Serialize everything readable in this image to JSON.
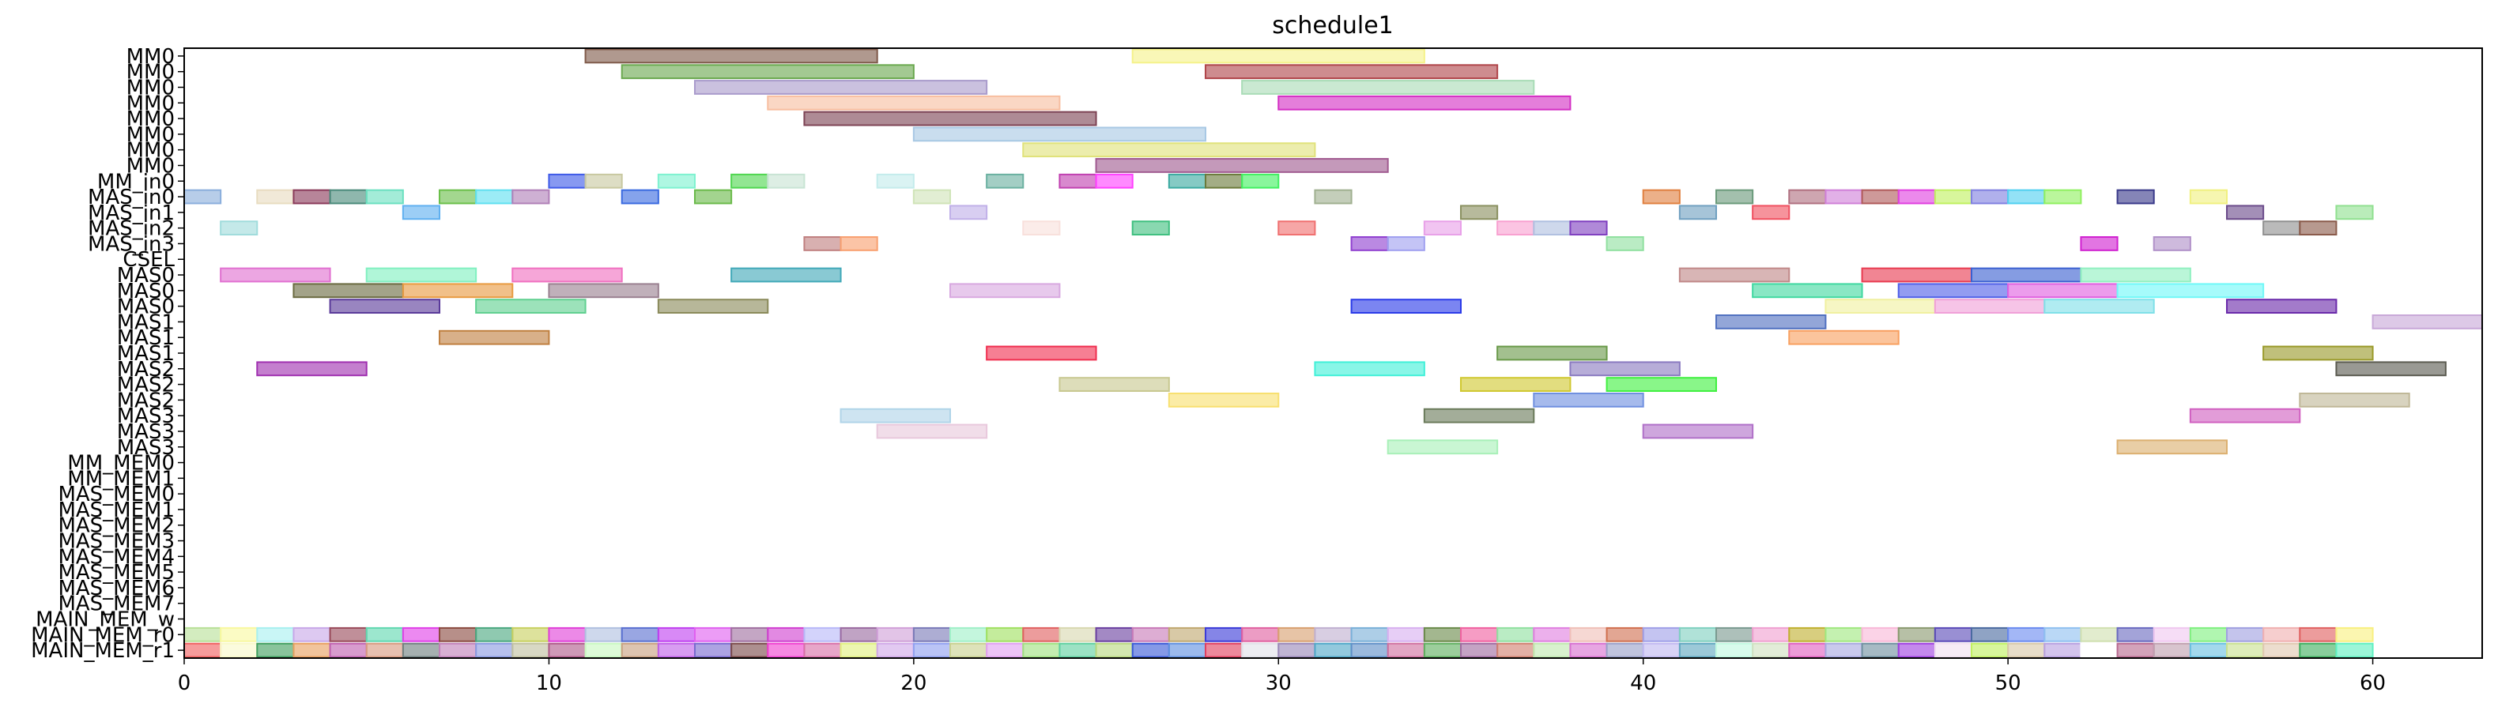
{
  "chart_data": {
    "type": "gantt",
    "title": "schedule1",
    "xlabel": "",
    "ylabel": "",
    "xlim": [
      0,
      63
    ],
    "xticks": [
      0,
      10,
      20,
      30,
      40,
      50,
      60
    ],
    "grid": false,
    "rows": [
      "MM0",
      "MM0",
      "MM0",
      "MM0",
      "MM0",
      "MM0",
      "MM0",
      "MM0",
      "MM_in0",
      "MAS_in0",
      "MAS_in1",
      "MAS_in2",
      "MAS_in3",
      "CSEL",
      "MAS0",
      "MAS0",
      "MAS0",
      "MAS1",
      "MAS1",
      "MAS1",
      "MAS2",
      "MAS2",
      "MAS2",
      "MAS3",
      "MAS3",
      "MAS3",
      "MM_MEM0",
      "MM_MEM1",
      "MAS_MEM0",
      "MAS_MEM1",
      "MAS_MEM2",
      "MAS_MEM3",
      "MAS_MEM4",
      "MAS_MEM5",
      "MAS_MEM6",
      "MAS_MEM7",
      "MAIN_MEM_w",
      "MAIN_MEM_r0",
      "MAIN_MEM_r1"
    ],
    "bars": [
      {
        "row": 0,
        "start": 11,
        "end": 19,
        "color": "#7f5a4a"
      },
      {
        "row": 0,
        "start": 26,
        "end": 34,
        "color": "#f5f28a"
      },
      {
        "row": 1,
        "start": 12,
        "end": 20,
        "color": "#6aa84f"
      },
      {
        "row": 1,
        "start": 28,
        "end": 36,
        "color": "#b0454a"
      },
      {
        "row": 2,
        "start": 14,
        "end": 22,
        "color": "#a99bcc"
      },
      {
        "row": 2,
        "start": 29,
        "end": 37,
        "color": "#a9dcb7"
      },
      {
        "row": 3,
        "start": 16,
        "end": 24,
        "color": "#f7bea0"
      },
      {
        "row": 3,
        "start": 30,
        "end": 38,
        "color": "#d42fc4"
      },
      {
        "row": 4,
        "start": 17,
        "end": 25,
        "color": "#7d4354"
      },
      {
        "row": 5,
        "start": 20,
        "end": 28,
        "color": "#a8c8e4"
      },
      {
        "row": 6,
        "start": 23,
        "end": 31,
        "color": "#e0e27a"
      },
      {
        "row": 7,
        "start": 25,
        "end": 33,
        "color": "#a05a90"
      },
      {
        "row": 8,
        "start": 10,
        "end": 11,
        "color": "#3e5ae8"
      },
      {
        "row": 8,
        "start": 11,
        "end": 12,
        "color": "#c8c8a0"
      },
      {
        "row": 8,
        "start": 13,
        "end": 14,
        "color": "#7ef2d0"
      },
      {
        "row": 8,
        "start": 15,
        "end": 16,
        "color": "#4fd64f"
      },
      {
        "row": 8,
        "start": 16,
        "end": 17,
        "color": "#c8e4d4"
      },
      {
        "row": 8,
        "start": 19,
        "end": 20,
        "color": "#c4ecec"
      },
      {
        "row": 8,
        "start": 22,
        "end": 23,
        "color": "#6ab0a0"
      },
      {
        "row": 8,
        "start": 24,
        "end": 25,
        "color": "#c040b0"
      },
      {
        "row": 8,
        "start": 25,
        "end": 26,
        "color": "#ff40ff"
      },
      {
        "row": 8,
        "start": 27,
        "end": 28,
        "color": "#3aaaa0"
      },
      {
        "row": 8,
        "start": 28,
        "end": 29,
        "color": "#6a7a3a"
      },
      {
        "row": 8,
        "start": 29,
        "end": 30,
        "color": "#40f060"
      },
      {
        "row": 9,
        "start": 0,
        "end": 1,
        "color": "#8aaedc"
      },
      {
        "row": 9,
        "start": 2,
        "end": 3,
        "color": "#e8dcc0"
      },
      {
        "row": 9,
        "start": 3,
        "end": 4,
        "color": "#8a3a5a"
      },
      {
        "row": 9,
        "start": 4,
        "end": 5,
        "color": "#4a8a7a"
      },
      {
        "row": 9,
        "start": 5,
        "end": 6,
        "color": "#6ae0c0"
      },
      {
        "row": 9,
        "start": 7,
        "end": 8,
        "color": "#6abf4a"
      },
      {
        "row": 9,
        "start": 8,
        "end": 9,
        "color": "#60e0f0"
      },
      {
        "row": 9,
        "start": 9,
        "end": 10,
        "color": "#b080b8"
      },
      {
        "row": 9,
        "start": 12,
        "end": 13,
        "color": "#3a6ae0"
      },
      {
        "row": 9,
        "start": 14,
        "end": 15,
        "color": "#6aba4a"
      },
      {
        "row": 9,
        "start": 20,
        "end": 21,
        "color": "#d0e4b8"
      },
      {
        "row": 9,
        "start": 31,
        "end": 32,
        "color": "#a0b090"
      },
      {
        "row": 9,
        "start": 40,
        "end": 41,
        "color": "#e08040"
      },
      {
        "row": 9,
        "start": 42,
        "end": 43,
        "color": "#6a9a7a"
      },
      {
        "row": 9,
        "start": 44,
        "end": 45,
        "color": "#b07080"
      },
      {
        "row": 9,
        "start": 45,
        "end": 46,
        "color": "#d080d8"
      },
      {
        "row": 9,
        "start": 46,
        "end": 47,
        "color": "#b05a5a"
      },
      {
        "row": 9,
        "start": 47,
        "end": 48,
        "color": "#e040e0"
      },
      {
        "row": 9,
        "start": 48,
        "end": 49,
        "color": "#c0f060"
      },
      {
        "row": 9,
        "start": 49,
        "end": 50,
        "color": "#8080e0"
      },
      {
        "row": 9,
        "start": 50,
        "end": 51,
        "color": "#50d0f0"
      },
      {
        "row": 9,
        "start": 51,
        "end": 52,
        "color": "#90f060"
      },
      {
        "row": 9,
        "start": 53,
        "end": 54,
        "color": "#3a3a8a"
      },
      {
        "row": 9,
        "start": 55,
        "end": 56,
        "color": "#f0f080"
      },
      {
        "row": 10,
        "start": 6,
        "end": 7,
        "color": "#60b0f0"
      },
      {
        "row": 10,
        "start": 21,
        "end": 22,
        "color": "#c0b0e8"
      },
      {
        "row": 10,
        "start": 35,
        "end": 36,
        "color": "#8a9060"
      },
      {
        "row": 10,
        "start": 41,
        "end": 42,
        "color": "#70a0c0"
      },
      {
        "row": 10,
        "start": 43,
        "end": 44,
        "color": "#f05060"
      },
      {
        "row": 10,
        "start": 56,
        "end": 57,
        "color": "#6a4a8a"
      },
      {
        "row": 10,
        "start": 59,
        "end": 60,
        "color": "#90e090"
      },
      {
        "row": 11,
        "start": 1,
        "end": 2,
        "color": "#a0dcdc"
      },
      {
        "row": 11,
        "start": 23,
        "end": 24,
        "color": "#f8e0dc"
      },
      {
        "row": 11,
        "start": 26,
        "end": 27,
        "color": "#40c080"
      },
      {
        "row": 11,
        "start": 30,
        "end": 31,
        "color": "#f07070"
      },
      {
        "row": 11,
        "start": 34,
        "end": 35,
        "color": "#e8a0e8"
      },
      {
        "row": 11,
        "start": 36,
        "end": 37,
        "color": "#f8a0d0"
      },
      {
        "row": 11,
        "start": 37,
        "end": 38,
        "color": "#b0c0e0"
      },
      {
        "row": 11,
        "start": 38,
        "end": 39,
        "color": "#8040c0"
      },
      {
        "row": 11,
        "start": 57,
        "end": 58,
        "color": "#909090"
      },
      {
        "row": 11,
        "start": 58,
        "end": 59,
        "color": "#8a5a4a"
      },
      {
        "row": 12,
        "start": 17,
        "end": 18,
        "color": "#c08080"
      },
      {
        "row": 12,
        "start": 18,
        "end": 19,
        "color": "#f8a070"
      },
      {
        "row": 12,
        "start": 32,
        "end": 33,
        "color": "#9040d0"
      },
      {
        "row": 12,
        "start": 33,
        "end": 34,
        "color": "#a0a0f0"
      },
      {
        "row": 12,
        "start": 39,
        "end": 40,
        "color": "#90e0a0"
      },
      {
        "row": 12,
        "start": 52,
        "end": 53,
        "color": "#d020d0"
      },
      {
        "row": 12,
        "start": 54,
        "end": 55,
        "color": "#b090c8"
      },
      {
        "row": 14,
        "start": 1,
        "end": 4,
        "color": "#e070d0"
      },
      {
        "row": 14,
        "start": 5,
        "end": 8,
        "color": "#80f0c0"
      },
      {
        "row": 14,
        "start": 9,
        "end": 12,
        "color": "#f070c0"
      },
      {
        "row": 14,
        "start": 15,
        "end": 18,
        "color": "#40a8b8"
      },
      {
        "row": 14,
        "start": 41,
        "end": 44,
        "color": "#c08888"
      },
      {
        "row": 14,
        "start": 46,
        "end": 49,
        "color": "#e83a50"
      },
      {
        "row": 14,
        "start": 49,
        "end": 52,
        "color": "#3a60d0"
      },
      {
        "row": 14,
        "start": 52,
        "end": 55,
        "color": "#90f0c0"
      },
      {
        "row": 15,
        "start": 3,
        "end": 6,
        "color": "#6a6a40"
      },
      {
        "row": 15,
        "start": 6,
        "end": 9,
        "color": "#e89a40"
      },
      {
        "row": 15,
        "start": 10,
        "end": 13,
        "color": "#9a8090"
      },
      {
        "row": 15,
        "start": 21,
        "end": 24,
        "color": "#d8a8e0"
      },
      {
        "row": 15,
        "start": 43,
        "end": 46,
        "color": "#40d8a0"
      },
      {
        "row": 15,
        "start": 47,
        "end": 50,
        "color": "#5060e8"
      },
      {
        "row": 15,
        "start": 50,
        "end": 53,
        "color": "#e060e0"
      },
      {
        "row": 15,
        "start": 53,
        "end": 57,
        "color": "#70f8f8"
      },
      {
        "row": 16,
        "start": 4,
        "end": 7,
        "color": "#5a3a9a"
      },
      {
        "row": 16,
        "start": 8,
        "end": 11,
        "color": "#60d090"
      },
      {
        "row": 16,
        "start": 13,
        "end": 16,
        "color": "#8a8a5a"
      },
      {
        "row": 16,
        "start": 32,
        "end": 35,
        "color": "#2a3ae8"
      },
      {
        "row": 16,
        "start": 45,
        "end": 48,
        "color": "#f0f0a0"
      },
      {
        "row": 16,
        "start": 48,
        "end": 51,
        "color": "#f0a0d8"
      },
      {
        "row": 16,
        "start": 51,
        "end": 54,
        "color": "#80e0e8"
      },
      {
        "row": 16,
        "start": 56,
        "end": 59,
        "color": "#6a2aaa"
      },
      {
        "row": 17,
        "start": 60,
        "end": 63,
        "color": "#c8a8d8"
      },
      {
        "row": 17,
        "start": 42,
        "end": 45,
        "color": "#5070c0"
      },
      {
        "row": 18,
        "start": 7,
        "end": 10,
        "color": "#c08040"
      },
      {
        "row": 18,
        "start": 44,
        "end": 47,
        "color": "#f8a060"
      },
      {
        "row": 19,
        "start": 22,
        "end": 25,
        "color": "#f03050"
      },
      {
        "row": 19,
        "start": 36,
        "end": 39,
        "color": "#6a9a4a"
      },
      {
        "row": 19,
        "start": 57,
        "end": 60,
        "color": "#9a9a2a"
      },
      {
        "row": 20,
        "start": 2,
        "end": 5,
        "color": "#a030b0"
      },
      {
        "row": 20,
        "start": 31,
        "end": 34,
        "color": "#40f0d8"
      },
      {
        "row": 20,
        "start": 38,
        "end": 41,
        "color": "#8a7ac0"
      },
      {
        "row": 20,
        "start": 59,
        "end": 62,
        "color": "#5a5a50"
      },
      {
        "row": 21,
        "start": 24,
        "end": 27,
        "color": "#c8c890"
      },
      {
        "row": 21,
        "start": 35,
        "end": 38,
        "color": "#d0c830"
      },
      {
        "row": 21,
        "start": 39,
        "end": 42,
        "color": "#40f040"
      },
      {
        "row": 22,
        "start": 27,
        "end": 30,
        "color": "#f8e070"
      },
      {
        "row": 22,
        "start": 37,
        "end": 40,
        "color": "#7090e0"
      },
      {
        "row": 22,
        "start": 58,
        "end": 61,
        "color": "#c0b898"
      },
      {
        "row": 23,
        "start": 18,
        "end": 21,
        "color": "#b0d4e8"
      },
      {
        "row": 23,
        "start": 34,
        "end": 37,
        "color": "#6a7a5a"
      },
      {
        "row": 23,
        "start": 55,
        "end": 58,
        "color": "#d060c0"
      },
      {
        "row": 24,
        "start": 19,
        "end": 22,
        "color": "#e8c8dc"
      },
      {
        "row": 24,
        "start": 40,
        "end": 43,
        "color": "#b070c8"
      },
      {
        "row": 25,
        "start": 33,
        "end": 36,
        "color": "#a8f0b8"
      },
      {
        "row": 25,
        "start": 53,
        "end": 56,
        "color": "#dcb070"
      }
    ],
    "mem_row_r1": 38,
    "mem_row_r0": 37,
    "mem_row_colors": {
      "r0": [
        "#b8e098",
        "#f8f8a0",
        "#a8f0f0",
        "#c8a8e8",
        "#9a4a5a",
        "#60d8b0",
        "#e040e8",
        "#8a4a40",
        "#4aa880",
        "#c8d060",
        "#e040d8",
        "#b0c0e0",
        "#5a70d0",
        "#c040f0",
        "#e060f0",
        "#a070a0",
        "#d040d0",
        "#b8b8f8",
        "#9a6aa0",
        "#d0a0d8",
        "#7a7ab8",
        "#a0f0c8",
        "#a0e060",
        "#e06060",
        "#d8d8b0",
        "#6a40a0",
        "#c87ab8",
        "#c0a870",
        "#3a3ad8",
        "#e060a0",
        "#d8a070",
        "#c0b0d0",
        "#7ab0d8",
        "#d8b0f0",
        "#6a8a4a",
        "#f060a0",
        "#90e0a0",
        "#e080e0",
        "#f0c0b8",
        "#d07050",
        "#a0a0e8",
        "#80d0c0",
        "#7a9a90",
        "#f0a0d0",
        "#c0b030",
        "#a0e880",
        "#f8b8d8",
        "#8a9a70",
        "#5a4ab8",
        "#4a6aa0",
        "#6a8af0",
        "#90c0f0",
        "#d0e0b0",
        "#6a6ac0",
        "#f0c8f0",
        "#80f080",
        "#a0a0e0",
        "#f0b0b0",
        "#e06060",
        "#f8f080"
      ],
      "r1": [
        "#f06060",
        "#f8f8c8",
        "#40a060",
        "#e8a060",
        "#c060b0",
        "#d89a80",
        "#708080",
        "#c080b8",
        "#8a9ae0",
        "#c0c0a0",
        "#b05a8a",
        "#c8f8c0",
        "#c8a080",
        "#c060e8",
        "#7a6ad0",
        "#7a4a4a",
        "#f040d0",
        "#d870a8",
        "#e0f080",
        "#d0a8e8",
        "#90a0f0",
        "#c8d090",
        "#e0a0f0",
        "#a0e080",
        "#60d0a0",
        "#b8d880",
        "#3a5ad8",
        "#6090e0",
        "#e04060",
        "#e0e0e8",
        "#9a88b8",
        "#50a8c8",
        "#6090c8",
        "#d070a0",
        "#60b060",
        "#a06aa0",
        "#d08070",
        "#c0e8b0",
        "#d870d0",
        "#9aa0c8",
        "#c0b8f0",
        "#60a8c0",
        "#c0f8e0",
        "#d0e0c0",
        "#e060c0",
        "#a8a8e0",
        "#7090a0",
        "#a040e0",
        "#f0e0f0",
        "#c0f060",
        "#d8c8a8",
        "#b8a0e0",
        "#ffffff",
        "#b86a90",
        "#c0a0b0",
        "#6ac0e0",
        "#c8e090",
        "#e0c8b0",
        "#40b060",
        "#60f0c0"
      ]
    }
  }
}
